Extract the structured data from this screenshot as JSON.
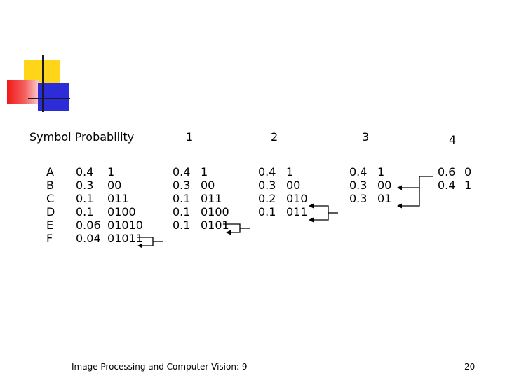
{
  "header": {
    "symbol_probability": "Symbol Probability",
    "step1": "1",
    "step2": "2",
    "step3": "3",
    "step4": "4"
  },
  "symbols": [
    "A",
    "B",
    "C",
    "D",
    "E",
    "F"
  ],
  "initial": {
    "probabilities": [
      "0.4",
      "0.3",
      "0.1",
      "0.1",
      "0.06",
      "0.04"
    ],
    "codes": [
      "1",
      "00",
      "011",
      "0100",
      "01010",
      "01011"
    ]
  },
  "step1": {
    "probabilities": [
      "0.4",
      "0.3",
      "0.1",
      "0.1",
      "0.1"
    ],
    "codes": [
      "1",
      "00",
      "011",
      "0100",
      "0101"
    ]
  },
  "step2": {
    "probabilities": [
      "0.4",
      "0.3",
      "0.2",
      "0.1"
    ],
    "codes": [
      "1",
      "00",
      "010",
      "011"
    ]
  },
  "step3": {
    "probabilities": [
      "0.4",
      "0.3",
      "0.3"
    ],
    "codes": [
      "1",
      "00",
      "01"
    ]
  },
  "step4": {
    "probabilities": [
      "0.6",
      "0.4"
    ],
    "codes": [
      "0",
      "1"
    ]
  },
  "footer": {
    "title": "Image Processing and Computer Vision: 9",
    "page_number": "20"
  }
}
